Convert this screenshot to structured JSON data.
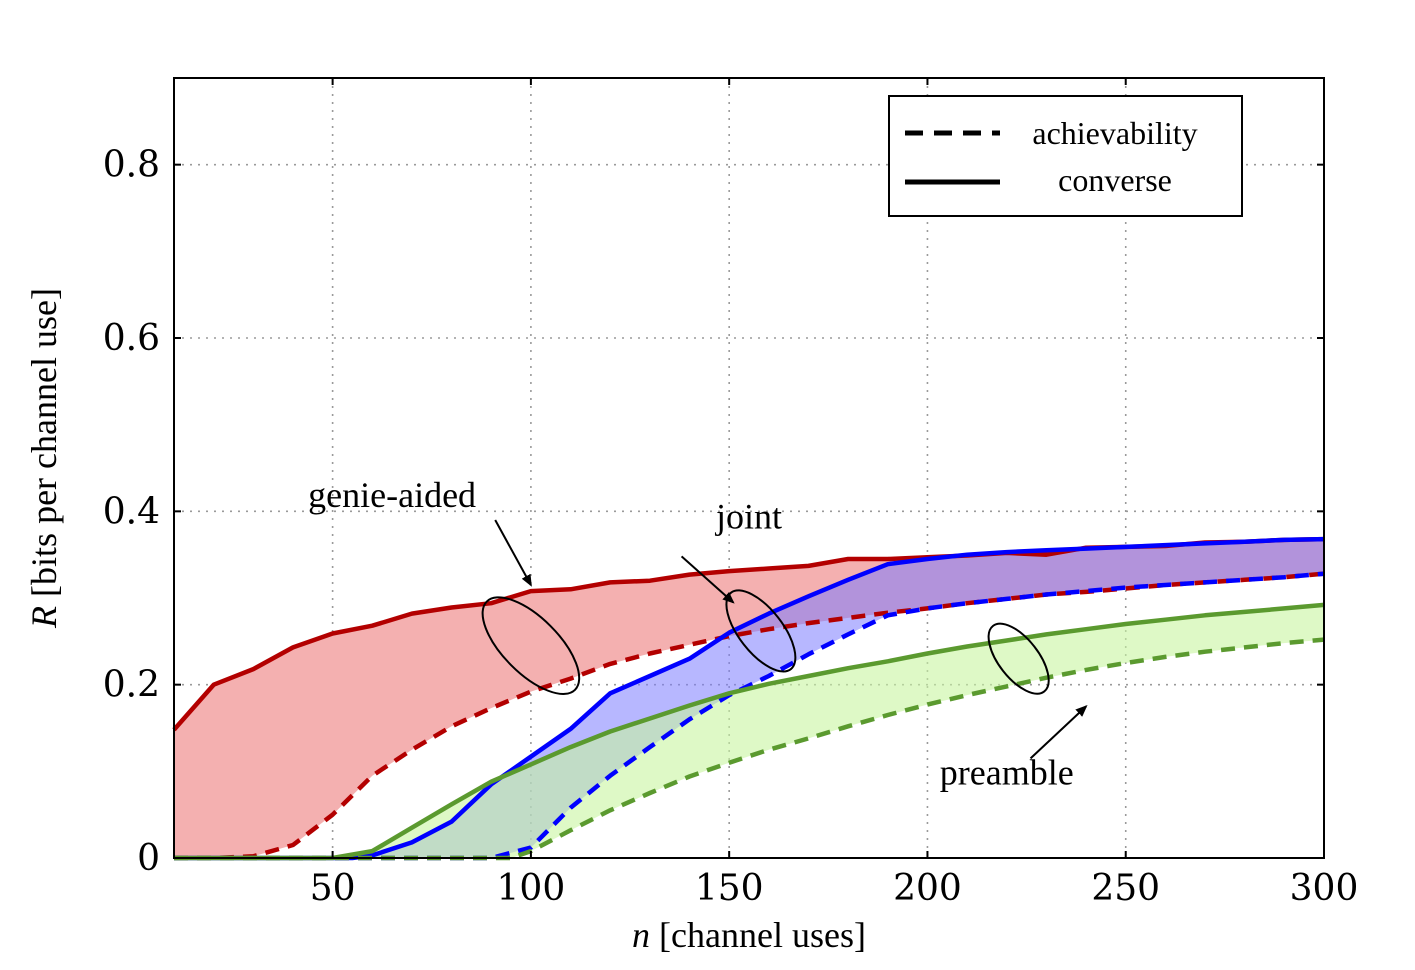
{
  "chart_data": {
    "type": "line",
    "title": "",
    "xlabel_italic": "n",
    "xlabel_rest": " [channel uses]",
    "ylabel_italic": "R",
    "ylabel_rest": " [bits per channel use]",
    "xlim": [
      10,
      300
    ],
    "ylim": [
      0,
      0.9
    ],
    "xticks": [
      50,
      100,
      150,
      200,
      250,
      300
    ],
    "yticks": [
      0,
      0.2,
      0.4,
      0.6,
      0.8
    ],
    "xtick_labels": [
      "50",
      "100",
      "150",
      "200",
      "250",
      "300"
    ],
    "ytick_labels": [
      "0",
      "0.2",
      "0.4",
      "0.6",
      "0.8"
    ],
    "grid": true,
    "legend": {
      "placement": "top-right",
      "entries": [
        {
          "label": "achievability",
          "style": "dashed"
        },
        {
          "label": "converse",
          "style": "solid"
        }
      ]
    },
    "series": [
      {
        "group": "genie-aided",
        "color": "#b30000",
        "fill": "#f4b0b0",
        "fill_opacity": 1,
        "converse": {
          "x": [
            10,
            20,
            30,
            40,
            50,
            60,
            70,
            80,
            90,
            100,
            110,
            120,
            130,
            140,
            150,
            160,
            170,
            180,
            190,
            200,
            210,
            220,
            230,
            240,
            250,
            260,
            270,
            280,
            290,
            300
          ],
          "y": [
            0.148,
            0.2,
            0.218,
            0.243,
            0.259,
            0.268,
            0.282,
            0.289,
            0.294,
            0.308,
            0.31,
            0.318,
            0.32,
            0.327,
            0.331,
            0.334,
            0.337,
            0.345,
            0.345,
            0.347,
            0.349,
            0.352,
            0.35,
            0.358,
            0.359,
            0.36,
            0.364,
            0.365,
            0.367,
            0.368
          ]
        },
        "achievability": {
          "x": [
            10,
            20,
            30,
            40,
            50,
            60,
            70,
            80,
            90,
            100,
            110,
            120,
            130,
            140,
            150,
            160,
            170,
            180,
            190,
            200,
            210,
            220,
            230,
            240,
            250,
            260,
            270,
            280,
            290,
            300
          ],
          "y": [
            0,
            0,
            0.002,
            0.015,
            0.05,
            0.095,
            0.125,
            0.152,
            0.173,
            0.192,
            0.207,
            0.224,
            0.236,
            0.246,
            0.256,
            0.264,
            0.271,
            0.277,
            0.283,
            0.288,
            0.294,
            0.299,
            0.304,
            0.307,
            0.311,
            0.315,
            0.318,
            0.321,
            0.324,
            0.328
          ]
        }
      },
      {
        "group": "joint",
        "color": "#0000ff",
        "fill": "#7b7bff",
        "fill_opacity": 0.55,
        "converse": {
          "x": [
            10,
            20,
            30,
            40,
            50,
            55,
            60,
            70,
            80,
            90,
            100,
            110,
            120,
            130,
            140,
            150,
            160,
            170,
            180,
            190,
            200,
            210,
            220,
            230,
            240,
            250,
            260,
            270,
            280,
            290,
            300
          ],
          "y": [
            0,
            0,
            0,
            0,
            0,
            0,
            0.003,
            0.018,
            0.042,
            0.085,
            0.117,
            0.149,
            0.19,
            0.21,
            0.23,
            0.26,
            0.282,
            0.302,
            0.321,
            0.339,
            0.345,
            0.35,
            0.353,
            0.355,
            0.357,
            0.359,
            0.361,
            0.363,
            0.365,
            0.367,
            0.368
          ]
        },
        "achievability": {
          "x": [
            10,
            20,
            30,
            40,
            50,
            60,
            70,
            80,
            90,
            100,
            110,
            120,
            130,
            140,
            150,
            160,
            170,
            180,
            190,
            200,
            210,
            220,
            230,
            240,
            250,
            260,
            270,
            280,
            290,
            300
          ],
          "y": [
            0,
            0,
            0,
            0,
            0,
            0,
            0,
            0,
            0,
            0.012,
            0.058,
            0.095,
            0.128,
            0.16,
            0.188,
            0.21,
            0.235,
            0.258,
            0.28,
            0.288,
            0.294,
            0.299,
            0.304,
            0.308,
            0.312,
            0.315,
            0.318,
            0.321,
            0.324,
            0.328
          ]
        }
      },
      {
        "group": "preamble",
        "color": "#5b9a2f",
        "fill": "#c8f5a0",
        "fill_opacity": 0.6,
        "converse": {
          "x": [
            10,
            20,
            30,
            40,
            50,
            60,
            70,
            80,
            90,
            100,
            110,
            120,
            130,
            140,
            150,
            160,
            170,
            180,
            190,
            200,
            210,
            220,
            230,
            240,
            250,
            260,
            270,
            280,
            290,
            300
          ],
          "y": [
            0,
            0,
            0,
            0,
            0,
            0.008,
            0.035,
            0.062,
            0.088,
            0.108,
            0.128,
            0.146,
            0.161,
            0.176,
            0.19,
            0.201,
            0.21,
            0.219,
            0.227,
            0.236,
            0.244,
            0.251,
            0.258,
            0.264,
            0.27,
            0.275,
            0.28,
            0.284,
            0.288,
            0.292
          ]
        },
        "achievability": {
          "x": [
            10,
            20,
            30,
            40,
            50,
            60,
            70,
            80,
            90,
            95,
            100,
            110,
            120,
            130,
            140,
            150,
            160,
            170,
            180,
            190,
            200,
            210,
            220,
            230,
            240,
            250,
            260,
            270,
            280,
            290,
            300
          ],
          "y": [
            0,
            0,
            0,
            0,
            0,
            0,
            0,
            0,
            0,
            0,
            0.008,
            0.032,
            0.055,
            0.075,
            0.094,
            0.11,
            0.125,
            0.138,
            0.152,
            0.165,
            0.177,
            0.188,
            0.198,
            0.208,
            0.217,
            0.225,
            0.232,
            0.238,
            0.243,
            0.248,
            0.252
          ]
        }
      }
    ],
    "annotations": [
      {
        "text": "genie-aided",
        "ellipse_center": [
          100,
          0.245
        ],
        "ellipse_rx_data": 7,
        "ellipse_ry_data": 0.072,
        "rotate": -45,
        "label_at": [
          65,
          0.405
        ],
        "arrow_from": [
          91,
          0.39
        ],
        "arrow_to": [
          100,
          0.315
        ]
      },
      {
        "text": "joint",
        "ellipse_center": [
          158,
          0.262
        ],
        "ellipse_rx_data": 5.5,
        "ellipse_ry_data": 0.056,
        "rotate": -38,
        "label_at": [
          155,
          0.38
        ],
        "arrow_from": [
          138,
          0.348
        ],
        "arrow_to": [
          151,
          0.295
        ]
      },
      {
        "text": "preamble",
        "ellipse_center": [
          223,
          0.23
        ],
        "ellipse_rx_data": 5,
        "ellipse_ry_data": 0.048,
        "rotate": -38,
        "label_at": [
          220,
          0.085
        ],
        "arrow_from": [
          226,
          0.115
        ],
        "arrow_to": [
          240,
          0.175
        ]
      }
    ]
  }
}
